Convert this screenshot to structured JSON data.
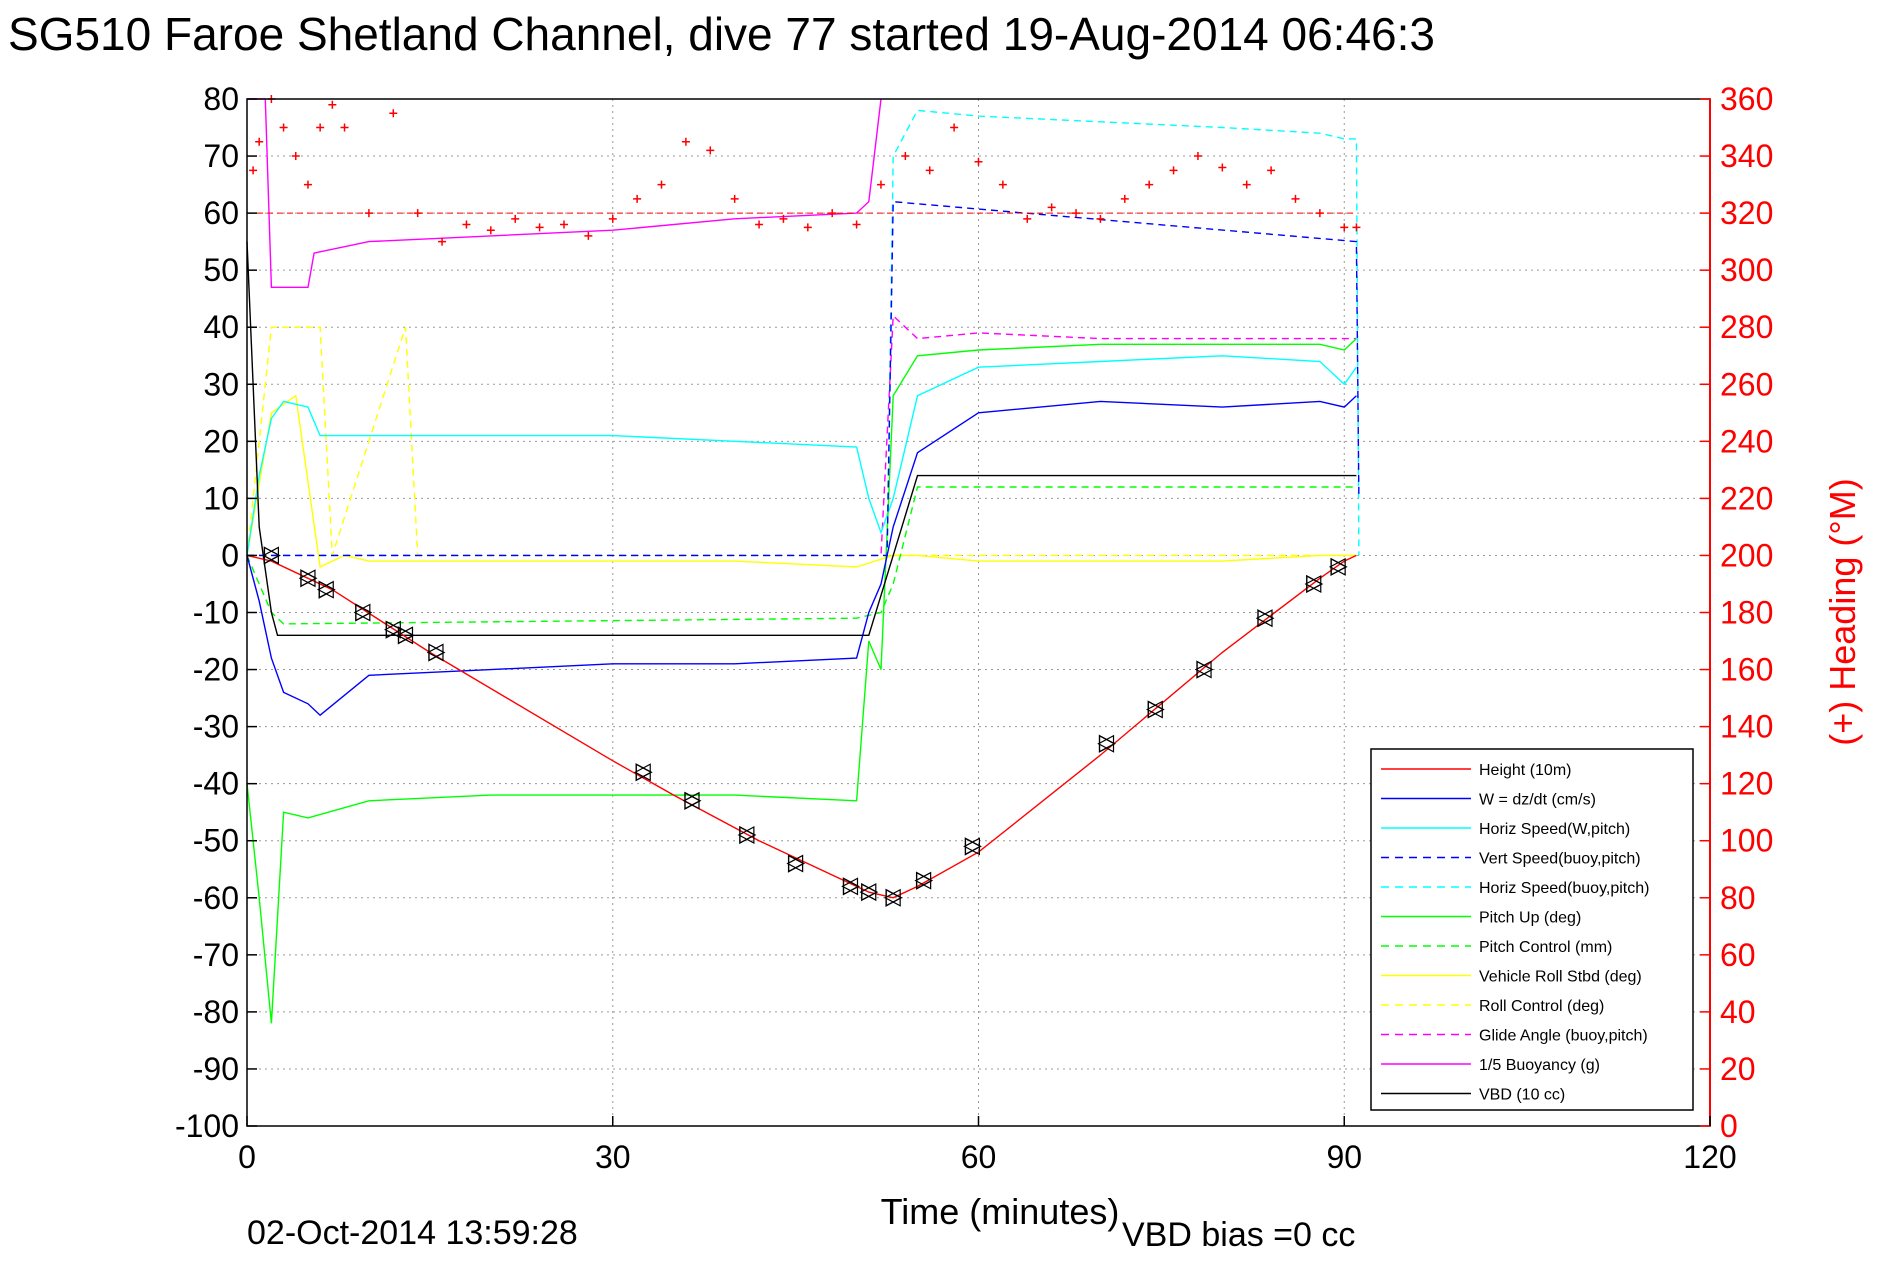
{
  "title": "SG510 Faroe Shetland Channel, dive 77 started 19-Aug-2014 06:46:3",
  "footer": {
    "timestamp": "02-Oct-2014 13:59:28",
    "vbd_bias": "VBD bias =0 cc"
  },
  "chart_data": {
    "type": "line",
    "xlabel": "Time (minutes)",
    "ylabel": "",
    "ylabel_right": "(+) Heading (°M)",
    "xlim": [
      0,
      120
    ],
    "ylim": [
      -100,
      80
    ],
    "ylim_right": [
      0,
      360
    ],
    "x_ticks": [
      0,
      30,
      60,
      90,
      120
    ],
    "y_ticks": [
      80,
      70,
      60,
      50,
      40,
      30,
      20,
      10,
      0,
      -10,
      -20,
      -30,
      -40,
      -50,
      -60,
      -70,
      -80,
      -90,
      -100
    ],
    "y_ticks_right": [
      360,
      340,
      320,
      300,
      280,
      260,
      240,
      220,
      200,
      180,
      160,
      140,
      120,
      100,
      80,
      60,
      40,
      20,
      0
    ],
    "grid": true,
    "legend_position": "bottom-right",
    "series": [
      {
        "name": "Height (10m)",
        "color": "#ff0000",
        "style": "solid",
        "x": [
          0,
          2,
          7,
          15,
          30,
          35,
          42,
          48,
          51,
          53,
          55,
          60,
          70,
          80,
          88,
          90,
          91
        ],
        "y": [
          0,
          -1,
          -6,
          -17,
          -36,
          -42,
          -50,
          -56,
          -59,
          -60,
          -58,
          -52,
          -35,
          -17,
          -4,
          -1,
          0
        ]
      },
      {
        "name": "W = dz/dt (cm/s)",
        "color": "#0000ff",
        "style": "solid",
        "x": [
          0,
          1,
          2,
          3,
          5,
          6,
          10,
          20,
          30,
          40,
          50,
          51,
          52,
          53,
          55,
          60,
          70,
          80,
          88,
          90,
          91
        ],
        "y": [
          0,
          -8,
          -18,
          -24,
          -26,
          -28,
          -21,
          -20,
          -19,
          -19,
          -18,
          -10,
          -5,
          5,
          18,
          25,
          27,
          26,
          27,
          26,
          28
        ]
      },
      {
        "name": "Horiz Speed(W,pitch)",
        "color": "#00ffff",
        "style": "solid",
        "x": [
          0,
          1,
          2,
          3,
          5,
          6,
          10,
          20,
          30,
          40,
          50,
          51,
          52,
          53,
          55,
          60,
          70,
          80,
          88,
          90,
          91
        ],
        "y": [
          0,
          14,
          24,
          27,
          26,
          21,
          21,
          21,
          21,
          20,
          19,
          10,
          4,
          10,
          28,
          33,
          34,
          35,
          34,
          30,
          33
        ]
      },
      {
        "name": "Vert Speed(buoy,pitch)",
        "color": "#0000ff",
        "style": "dashed",
        "x": [
          0,
          2,
          3,
          52,
          52.5,
          53,
          91,
          91.2
        ],
        "y": [
          0,
          0,
          0,
          0,
          0,
          62,
          55,
          10
        ]
      },
      {
        "name": "Horiz Speed(buoy,pitch)",
        "color": "#00ffff",
        "style": "dashed",
        "x": [
          0,
          52,
          52.5,
          53,
          55,
          60,
          70,
          80,
          88,
          90,
          91,
          91.2
        ],
        "y": [
          0,
          0,
          0,
          70,
          78,
          77,
          76,
          75,
          74,
          73,
          73,
          0
        ]
      },
      {
        "name": "Pitch Up (deg)",
        "color": "#00ff00",
        "style": "solid",
        "x": [
          0,
          1,
          2,
          3,
          5,
          10,
          20,
          30,
          40,
          50,
          51,
          52,
          53,
          55,
          60,
          70,
          80,
          88,
          90,
          91
        ],
        "y": [
          -40,
          -60,
          -82,
          -45,
          -46,
          -43,
          -42,
          -42,
          -42,
          -43,
          -15,
          -20,
          28,
          35,
          36,
          37,
          37,
          37,
          36,
          38
        ]
      },
      {
        "name": "Pitch Control (mm)",
        "color": "#00ff00",
        "style": "dashed",
        "x": [
          0,
          2,
          3,
          50,
          52,
          53,
          55,
          60,
          70,
          80,
          90,
          91
        ],
        "y": [
          0,
          -10,
          -12,
          -11,
          -10,
          -5,
          12,
          12,
          12,
          12,
          12,
          12
        ]
      },
      {
        "name": "Vehicle Roll Stbd (deg)",
        "color": "#ffff00",
        "style": "solid",
        "x": [
          0,
          2,
          4,
          6,
          8,
          10,
          20,
          30,
          40,
          50,
          53,
          55,
          60,
          70,
          80,
          88,
          90,
          91
        ],
        "y": [
          0,
          25,
          28,
          -2,
          0,
          -1,
          -1,
          -1,
          -1,
          -2,
          0,
          0,
          -1,
          -1,
          -1,
          0,
          0,
          0
        ]
      },
      {
        "name": "Roll Control (deg)",
        "color": "#ffff00",
        "style": "dashed",
        "x": [
          0,
          2,
          3,
          6,
          7,
          13,
          14,
          30,
          35,
          40,
          45,
          50,
          55,
          60,
          70,
          75,
          80,
          85,
          90,
          91
        ],
        "y": [
          0,
          40,
          40,
          40,
          0,
          40,
          0,
          0,
          0,
          0,
          0,
          0,
          0,
          0,
          0,
          0,
          0,
          0,
          0,
          0
        ]
      },
      {
        "name": "Glide Angle (buoy,pitch)",
        "color": "#ff00ff",
        "style": "dashed",
        "x": [
          0,
          52,
          53,
          55,
          60,
          70,
          80,
          90,
          91
        ],
        "y": [
          0,
          0,
          42,
          38,
          39,
          38,
          38,
          38,
          38
        ]
      },
      {
        "name": "1/5 Buoyancy (g)",
        "color": "#ff00ff",
        "style": "solid",
        "x": [
          0,
          1.5,
          2,
          5,
          5.5,
          10,
          20,
          30,
          40,
          50,
          51,
          52
        ],
        "y": [
          80,
          80,
          47,
          47,
          53,
          55,
          56,
          57,
          59,
          60,
          62,
          80
        ]
      },
      {
        "name": "VBD (10 cc)",
        "color": "#000000",
        "style": "solid",
        "x": [
          0,
          0.5,
          1,
          2,
          2.5,
          51,
          53,
          55,
          60,
          91
        ],
        "y": [
          55,
          30,
          5,
          -10,
          -14,
          -14,
          0,
          14,
          14,
          14
        ]
      }
    ],
    "heading": {
      "name": "(+) Heading",
      "color": "#ff0000",
      "axis": "right",
      "x": [
        0.5,
        1,
        2,
        3,
        4,
        5,
        6,
        7,
        8,
        10,
        12,
        14,
        16,
        18,
        20,
        22,
        24,
        26,
        28,
        30,
        32,
        34,
        36,
        38,
        40,
        42,
        44,
        46,
        48,
        50,
        52,
        54,
        56,
        58,
        60,
        62,
        64,
        66,
        68,
        70,
        72,
        74,
        76,
        78,
        80,
        82,
        84,
        86,
        88,
        90,
        91
      ],
      "y": [
        335,
        345,
        360,
        350,
        340,
        330,
        350,
        358,
        350,
        320,
        355,
        320,
        310,
        316,
        314,
        318,
        315,
        316,
        312,
        318,
        325,
        330,
        345,
        342,
        325,
        316,
        318,
        315,
        320,
        316,
        330,
        340,
        335,
        350,
        338,
        330,
        318,
        322,
        320,
        318,
        325,
        330,
        335,
        340,
        336,
        330,
        335,
        325,
        320,
        315,
        315
      ]
    },
    "markers": {
      "x": [
        2,
        5,
        6.5,
        9.5,
        12,
        13,
        15.5,
        32.5,
        36.5,
        41,
        45,
        49.5,
        51,
        53,
        55.5,
        59.5,
        70.5,
        74.5,
        78.5,
        83.5,
        87.5,
        89.5
      ],
      "y": [
        0,
        -4,
        -6,
        -10,
        -13,
        -14,
        -17,
        -38,
        -43,
        -49,
        -54,
        -58,
        -59,
        -60,
        -57,
        -51,
        -33,
        -27,
        -20,
        -11,
        -5,
        -2
      ]
    }
  }
}
